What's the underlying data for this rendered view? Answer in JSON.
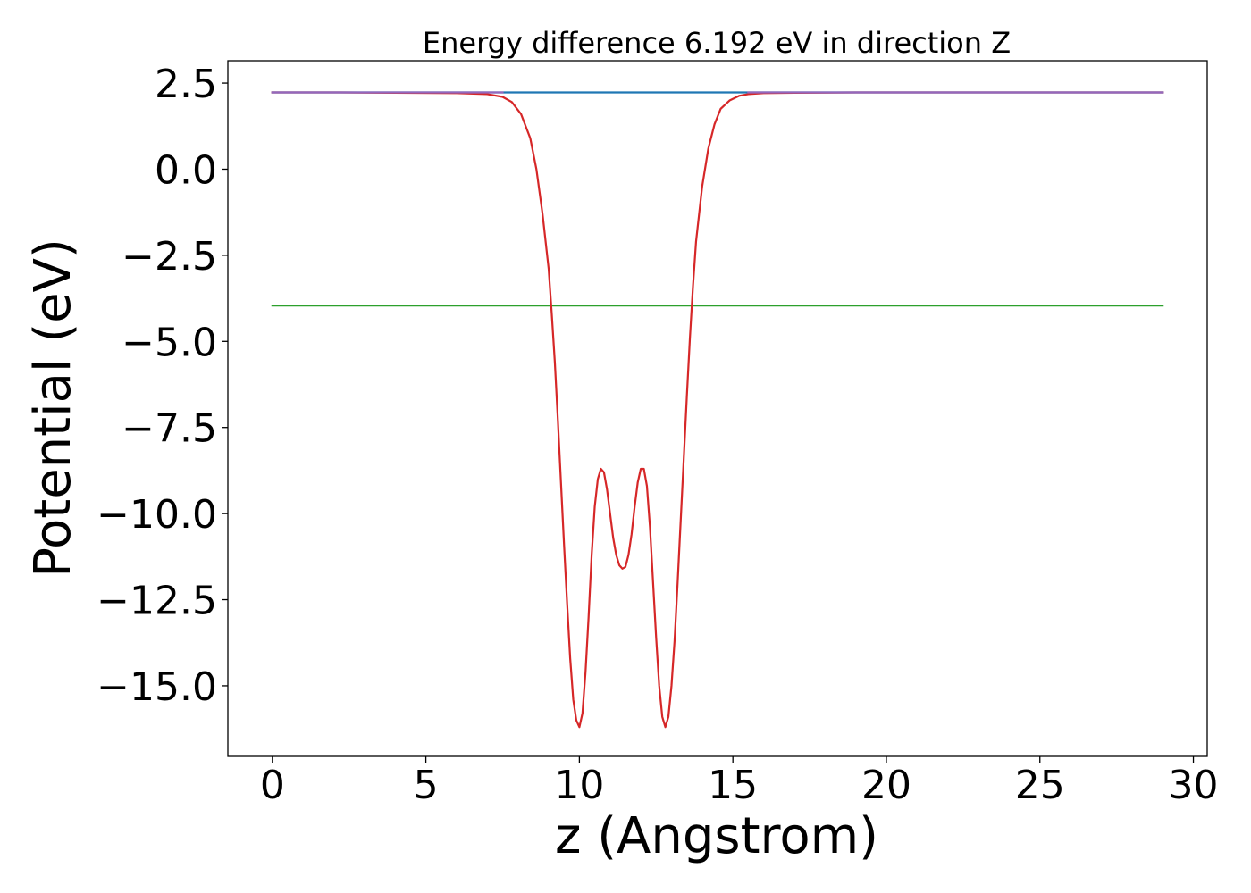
{
  "chart_data": {
    "type": "line",
    "title": "Energy difference 6.192 eV in direction Z",
    "xlabel": "z (Angstrom)",
    "ylabel": "Potential (eV)",
    "xlim": [
      -1.45,
      30.45
    ],
    "ylim": [
      -17.05,
      3.15
    ],
    "xticks": [
      0,
      5,
      10,
      15,
      20,
      25,
      30
    ],
    "xtick_labels": [
      "0",
      "5",
      "10",
      "15",
      "20",
      "25",
      "30"
    ],
    "yticks": [
      2.5,
      0.0,
      -2.5,
      -5.0,
      -7.5,
      -10.0,
      -12.5,
      -15.0
    ],
    "ytick_labels": [
      "2.5",
      "0.0",
      "−2.5",
      "−5.0",
      "−7.5",
      "−10.0",
      "−12.5",
      "−15.0"
    ],
    "grid": false,
    "series": [
      {
        "color": "#1f77b4",
        "x": [
          0,
          29
        ],
        "y": [
          2.23,
          2.23
        ]
      },
      {
        "color": "#2ca02c",
        "x": [
          0,
          29
        ],
        "y": [
          -3.96,
          -3.96
        ]
      },
      {
        "color": "#d62728",
        "x": [
          0,
          2,
          4,
          6,
          7,
          7.5,
          7.8,
          8.1,
          8.4,
          8.6,
          8.8,
          9.0,
          9.1,
          9.2,
          9.3,
          9.4,
          9.5,
          9.6,
          9.7,
          9.8,
          9.9,
          10.0,
          10.1,
          10.2,
          10.3,
          10.4,
          10.5,
          10.6,
          10.7,
          10.8,
          10.9,
          11.0,
          11.1,
          11.2,
          11.3,
          11.4,
          11.5,
          11.6,
          11.7,
          11.8,
          11.9,
          12.0,
          12.1,
          12.2,
          12.3,
          12.4,
          12.5,
          12.6,
          12.7,
          12.8,
          12.9,
          13.0,
          13.1,
          13.2,
          13.3,
          13.4,
          13.5,
          13.6,
          13.7,
          13.8,
          14.0,
          14.2,
          14.4,
          14.6,
          14.9,
          15.2,
          15.5,
          16.0,
          17.0,
          19.0,
          22.0,
          25.0,
          29.0
        ],
        "y": [
          2.23,
          2.23,
          2.22,
          2.21,
          2.18,
          2.1,
          1.95,
          1.6,
          0.9,
          0.0,
          -1.3,
          -2.9,
          -4.2,
          -5.6,
          -7.3,
          -9.1,
          -10.9,
          -12.6,
          -14.2,
          -15.4,
          -16.0,
          -16.2,
          -15.8,
          -14.6,
          -13.0,
          -11.2,
          -9.8,
          -9.0,
          -8.7,
          -8.8,
          -9.3,
          -10.0,
          -10.7,
          -11.2,
          -11.5,
          -11.6,
          -11.55,
          -11.2,
          -10.6,
          -9.8,
          -9.1,
          -8.7,
          -8.7,
          -9.2,
          -10.4,
          -12.0,
          -13.6,
          -15.0,
          -15.9,
          -16.2,
          -15.9,
          -15.0,
          -13.7,
          -12.0,
          -10.2,
          -8.4,
          -6.6,
          -4.9,
          -3.4,
          -2.1,
          -0.5,
          0.6,
          1.3,
          1.75,
          2.0,
          2.13,
          2.18,
          2.21,
          2.22,
          2.23,
          2.23,
          2.23,
          2.23
        ]
      },
      {
        "color": "#9467bd",
        "x": [
          0,
          7.5
        ],
        "y": [
          2.23,
          2.23
        ]
      },
      {
        "color": "#9467bd",
        "x": [
          15.5,
          29
        ],
        "y": [
          2.23,
          2.23
        ]
      }
    ]
  }
}
